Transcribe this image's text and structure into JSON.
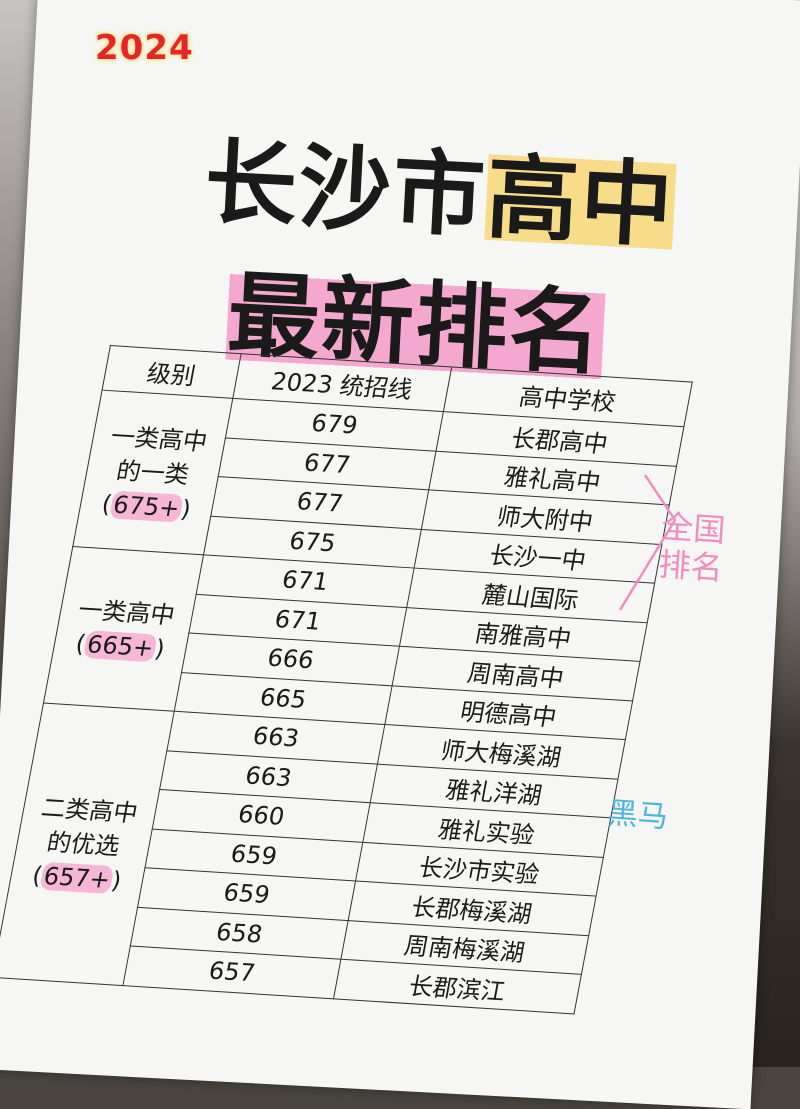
{
  "logo": "2024",
  "title": {
    "line1_a": "长沙市",
    "line1_b": "高中",
    "line2": "最新排名"
  },
  "table": {
    "headers": [
      "级别",
      "2023 统招线",
      "高中学校"
    ],
    "groups": [
      {
        "level": "一类高中的一类",
        "level_a": "一类高中",
        "level_b": "的一类",
        "cutoff": "675+",
        "rows": [
          [
            "679",
            "长郡高中"
          ],
          [
            "677",
            "雅礼高中"
          ],
          [
            "677",
            "师大附中"
          ],
          [
            "675",
            "长沙一中"
          ]
        ]
      },
      {
        "level": "一类高中",
        "level_a": "一类高中",
        "level_b": "",
        "cutoff": "665+",
        "rows": [
          [
            "671",
            "麓山国际"
          ],
          [
            "671",
            "南雅高中"
          ],
          [
            "666",
            "周南高中"
          ],
          [
            "665",
            "明德高中"
          ]
        ]
      },
      {
        "level": "二类高中的优选",
        "level_a": "二类高中",
        "level_b": "的优选",
        "cutoff": "657+",
        "rows": [
          [
            "663",
            "师大梅溪湖"
          ],
          [
            "663",
            "雅礼洋湖"
          ],
          [
            "660",
            "雅礼实验"
          ],
          [
            "659",
            "长沙市实验"
          ],
          [
            "659",
            "长郡梅溪湖"
          ],
          [
            "658",
            "周南梅溪湖"
          ],
          [
            "657",
            "长郡滨江"
          ]
        ]
      }
    ]
  },
  "annotations": {
    "national": "全国排名",
    "dark_horse": "黑马"
  },
  "colors": {
    "logo": "#e2262a",
    "highlight_yellow": "#f8dc8a",
    "highlight_pink": "#f4a8cf",
    "pen_pink": "#ef8fbf",
    "pen_blue": "#4db6d8"
  }
}
